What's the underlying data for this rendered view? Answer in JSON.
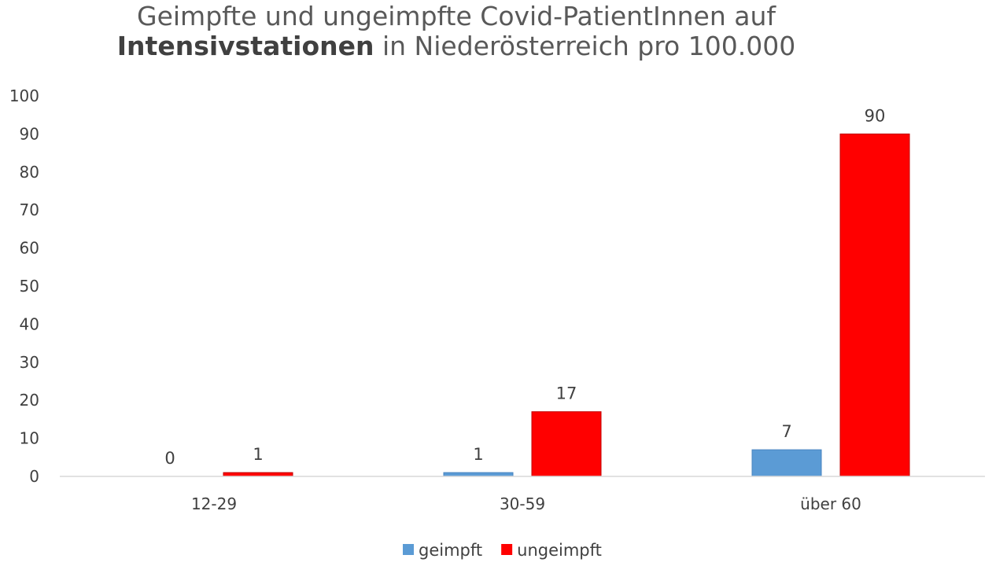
{
  "chart_data": {
    "type": "bar",
    "title_line1": "Geimpfte und ungeimpfte Covid-PatientInnen auf",
    "title_line2_bold": "Intensivstationen",
    "title_line2_rest": " in Niederösterreich pro 100.000",
    "categories": [
      "12-29",
      "30-59",
      "über 60"
    ],
    "series": [
      {
        "name": "geimpft",
        "values": [
          0,
          1,
          7
        ],
        "color": "#5B9BD5"
      },
      {
        "name": "ungeimpft",
        "values": [
          1,
          17,
          90
        ],
        "color": "#FF0000"
      }
    ],
    "ylim": [
      0,
      100
    ],
    "yticks": [
      0,
      10,
      20,
      30,
      40,
      50,
      60,
      70,
      80,
      90,
      100
    ],
    "xlabel": "",
    "ylabel": "",
    "grid": false,
    "legend": "bottom",
    "data_labels": true
  }
}
